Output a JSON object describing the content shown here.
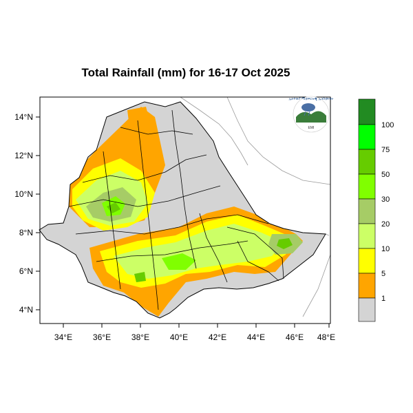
{
  "title": "Total Rainfall (mm) for 16-17 Oct 2025",
  "colors": {
    "c0": "#d4d4d4",
    "c1": "#ffa500",
    "c5": "#ffff00",
    "c10": "#ccff66",
    "c20": "#a6cc66",
    "c30": "#80ff00",
    "c50": "#66cc00",
    "c75": "#00ff00",
    "c100": "#228b22",
    "sea": "#ffffff",
    "border": "#000000"
  },
  "lat_labels": [
    "14°N",
    "12°N",
    "10°N",
    "8°N",
    "6°N",
    "4°N"
  ],
  "lon_labels": [
    "34°E",
    "36°E",
    "38°E",
    "40°E",
    "42°E",
    "44°E",
    "46°E",
    "48°E"
  ],
  "legend": {
    "labels": [
      "100",
      "75",
      "50",
      "30",
      "20",
      "10",
      "5",
      "1"
    ]
  },
  "logo": {
    "text": "ኢትዮጵያ ሚቲዎሮሎጂ ኢንስቲትዩት",
    "sub": "EMI"
  }
}
